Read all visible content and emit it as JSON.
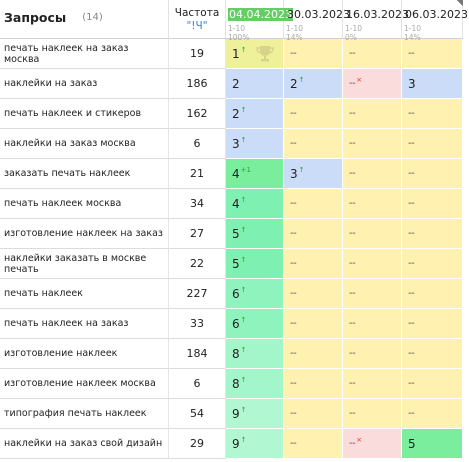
{
  "header": {
    "queries_title": "Запросы",
    "queries_count": "(14)",
    "frequency_title": "Частота",
    "frequency_mode": "\"!Ч\"",
    "dates": [
      {
        "label": "04.04.2023",
        "range": "1-10",
        "pct": "100%",
        "active": true
      },
      {
        "label": "30.03.2023",
        "range": "1-10",
        "pct": "14%",
        "active": false
      },
      {
        "label": "16.03.2023",
        "range": "1-10",
        "pct": "0%",
        "active": false
      },
      {
        "label": "06.03.2023",
        "range": "1-10",
        "pct": "14%",
        "active": false
      }
    ]
  },
  "rows": [
    {
      "query": "печать наклеек на заказ москва",
      "freq": "19",
      "positions": [
        {
          "v": "1",
          "mark": "up",
          "color": "lime",
          "trophy": true,
          "corner": false
        },
        {
          "v": "--",
          "mark": "",
          "color": "yellow",
          "corner": false
        },
        {
          "v": "--",
          "mark": "",
          "color": "yellow",
          "corner": false
        },
        {
          "v": "--",
          "mark": "",
          "color": "yellow",
          "corner": false
        }
      ]
    },
    {
      "query": "наклейки на заказ",
      "freq": "186",
      "positions": [
        {
          "v": "2",
          "mark": "",
          "color": "blue",
          "corner": false
        },
        {
          "v": "2",
          "mark": "up",
          "color": "blue",
          "corner": true
        },
        {
          "v": "--",
          "mark": "down",
          "color": "pink",
          "corner": true
        },
        {
          "v": "3",
          "mark": "",
          "color": "blue",
          "corner": false
        }
      ]
    },
    {
      "query": "печать наклеек и стикеров",
      "freq": "162",
      "positions": [
        {
          "v": "2",
          "mark": "up",
          "color": "blue",
          "corner": false
        },
        {
          "v": "--",
          "mark": "",
          "color": "yellow",
          "corner": false
        },
        {
          "v": "--",
          "mark": "",
          "color": "yellow",
          "corner": false
        },
        {
          "v": "--",
          "mark": "",
          "color": "yellow",
          "corner": false
        }
      ]
    },
    {
      "query": "наклейки на заказ москва",
      "freq": "6",
      "positions": [
        {
          "v": "3",
          "mark": "up",
          "color": "blue",
          "corner": true
        },
        {
          "v": "--",
          "mark": "",
          "color": "yellow",
          "corner": false
        },
        {
          "v": "--",
          "mark": "",
          "color": "yellow",
          "corner": false
        },
        {
          "v": "--",
          "mark": "",
          "color": "yellow",
          "corner": false
        }
      ]
    },
    {
      "query": "заказать печать наклеек",
      "freq": "21",
      "positions": [
        {
          "v": "4",
          "mark": "up1",
          "color": "green5",
          "corner": false
        },
        {
          "v": "3",
          "mark": "up",
          "color": "blue",
          "corner": true
        },
        {
          "v": "--",
          "mark": "",
          "color": "yellow",
          "corner": true
        },
        {
          "v": "--",
          "mark": "",
          "color": "yellow",
          "corner": false
        }
      ]
    },
    {
      "query": "печать наклеек москва",
      "freq": "34",
      "positions": [
        {
          "v": "4",
          "mark": "up",
          "color": "green1",
          "corner": true
        },
        {
          "v": "--",
          "mark": "",
          "color": "yellow",
          "corner": false
        },
        {
          "v": "--",
          "mark": "",
          "color": "yellow",
          "corner": false
        },
        {
          "v": "--",
          "mark": "",
          "color": "yellow",
          "corner": false
        }
      ]
    },
    {
      "query": "изготовление наклеек на заказ",
      "freq": "27",
      "positions": [
        {
          "v": "5",
          "mark": "up",
          "color": "green1",
          "corner": true
        },
        {
          "v": "--",
          "mark": "",
          "color": "yellow",
          "corner": false
        },
        {
          "v": "--",
          "mark": "",
          "color": "yellow",
          "corner": false
        },
        {
          "v": "--",
          "mark": "",
          "color": "yellow",
          "corner": false
        }
      ]
    },
    {
      "query": "наклейки заказать в москве печать",
      "freq": "22",
      "positions": [
        {
          "v": "5",
          "mark": "up",
          "color": "green1",
          "corner": true
        },
        {
          "v": "--",
          "mark": "",
          "color": "yellow",
          "corner": false
        },
        {
          "v": "--",
          "mark": "",
          "color": "yellow",
          "corner": false
        },
        {
          "v": "--",
          "mark": "",
          "color": "yellow",
          "corner": false
        }
      ]
    },
    {
      "query": "печать наклеек",
      "freq": "227",
      "positions": [
        {
          "v": "6",
          "mark": "up",
          "color": "green2",
          "corner": true
        },
        {
          "v": "--",
          "mark": "",
          "color": "yellow",
          "corner": false
        },
        {
          "v": "--",
          "mark": "",
          "color": "yellow",
          "corner": false
        },
        {
          "v": "--",
          "mark": "",
          "color": "yellow",
          "corner": false
        }
      ]
    },
    {
      "query": "печать наклеек на заказ",
      "freq": "33",
      "positions": [
        {
          "v": "6",
          "mark": "up",
          "color": "green2",
          "corner": true
        },
        {
          "v": "--",
          "mark": "",
          "color": "yellow",
          "corner": false
        },
        {
          "v": "--",
          "mark": "",
          "color": "yellow",
          "corner": false
        },
        {
          "v": "--",
          "mark": "",
          "color": "yellow",
          "corner": false
        }
      ]
    },
    {
      "query": "изготовление наклеек",
      "freq": "184",
      "positions": [
        {
          "v": "8",
          "mark": "up",
          "color": "green3",
          "corner": true
        },
        {
          "v": "--",
          "mark": "",
          "color": "yellow",
          "corner": false
        },
        {
          "v": "--",
          "mark": "",
          "color": "yellow",
          "corner": false
        },
        {
          "v": "--",
          "mark": "",
          "color": "yellow",
          "corner": false
        }
      ]
    },
    {
      "query": "изготовление наклеек москва",
      "freq": "6",
      "positions": [
        {
          "v": "8",
          "mark": "up",
          "color": "green3",
          "corner": true
        },
        {
          "v": "--",
          "mark": "",
          "color": "yellow",
          "corner": false
        },
        {
          "v": "--",
          "mark": "",
          "color": "yellow",
          "corner": false
        },
        {
          "v": "--",
          "mark": "",
          "color": "yellow",
          "corner": false
        }
      ]
    },
    {
      "query": "типография печать наклеек",
      "freq": "54",
      "positions": [
        {
          "v": "9",
          "mark": "up",
          "color": "green4",
          "corner": true
        },
        {
          "v": "--",
          "mark": "",
          "color": "yellow",
          "corner": false
        },
        {
          "v": "--",
          "mark": "",
          "color": "yellow",
          "corner": false
        },
        {
          "v": "--",
          "mark": "",
          "color": "yellow",
          "corner": false
        }
      ]
    },
    {
      "query": "наклейки на заказ свой дизайн",
      "freq": "29",
      "positions": [
        {
          "v": "9",
          "mark": "up",
          "color": "green4",
          "corner": true
        },
        {
          "v": "--",
          "mark": "",
          "color": "yellow",
          "corner": false
        },
        {
          "v": "--",
          "mark": "down",
          "color": "pink",
          "corner": true
        },
        {
          "v": "5",
          "mark": "",
          "color": "green5",
          "corner": false
        }
      ]
    }
  ],
  "marks": {
    "up": "↑",
    "up1": "+1",
    "down": "×"
  }
}
